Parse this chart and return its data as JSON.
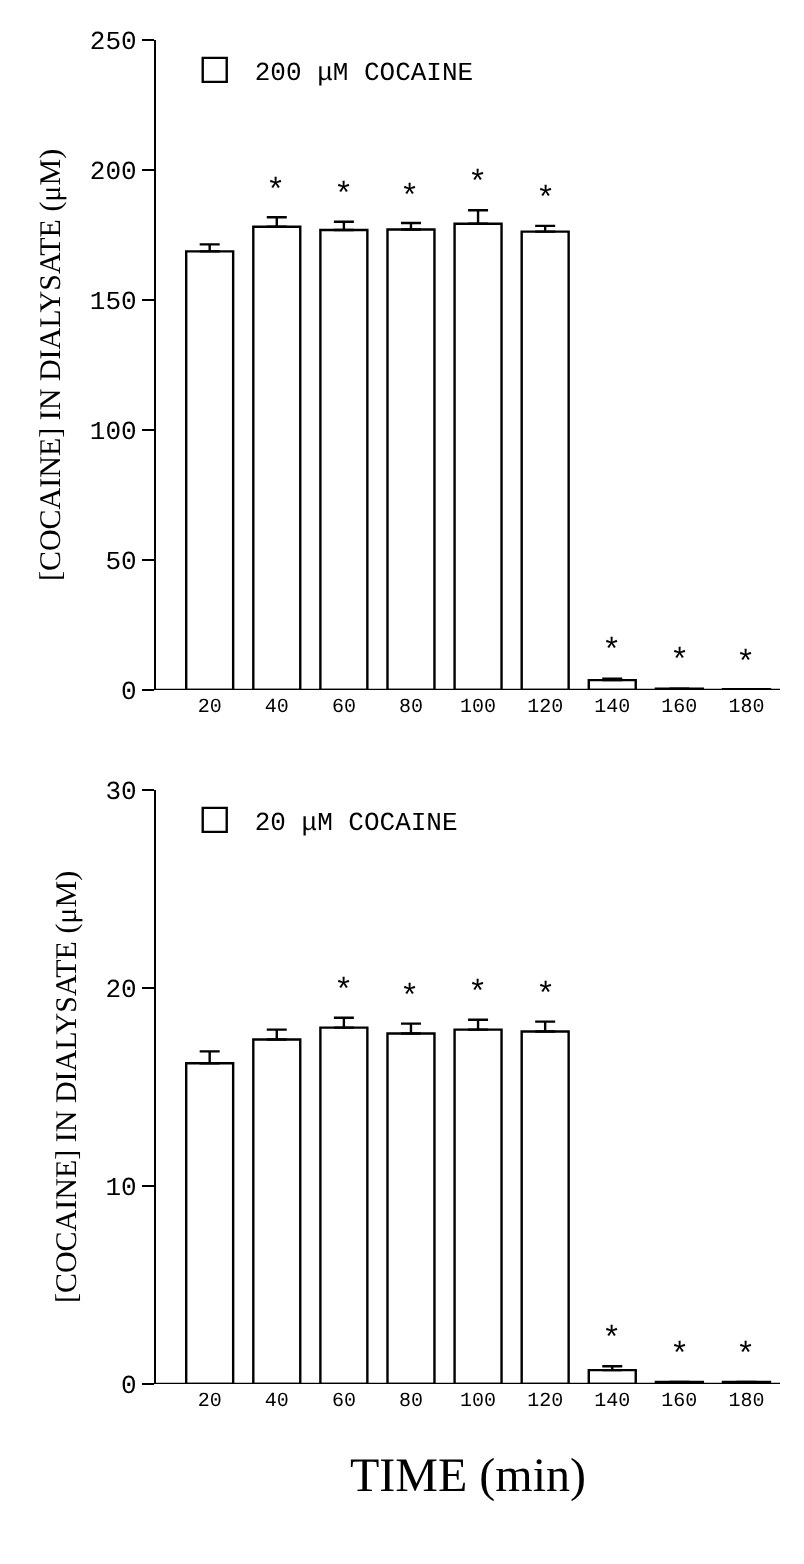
{
  "chart_data": [
    {
      "type": "bar",
      "ylabel": "[COCAINE] IN DIALYSATE (μM)",
      "categories": [
        "20",
        "40",
        "60",
        "80",
        "100",
        "120",
        "140",
        "160",
        "180"
      ],
      "series": [
        {
          "name": "200 μM COCAINE",
          "color": "#ffffff",
          "values": [
            168.7,
            178.2,
            176.9,
            177.1,
            179.3,
            176.3,
            3.8,
            0.5,
            0.3
          ],
          "errors": [
            [
              168.7,
              171.4
            ],
            [
              178.2,
              181.8
            ],
            [
              176.9,
              180.1
            ],
            [
              177.1,
              179.6
            ],
            [
              179.3,
              184.5
            ],
            [
              176.3,
              178.5
            ],
            [
              3.8,
              4.3
            ],
            null,
            null
          ],
          "value_labels": [
            null,
            "*",
            "*",
            "*",
            "*",
            "*",
            "*",
            "*",
            "*"
          ]
        }
      ],
      "ylim": [
        0,
        250
      ],
      "yticks": [
        0,
        50,
        100,
        150,
        200,
        250
      ],
      "grid": false,
      "legend": "top left"
    },
    {
      "type": "bar",
      "ylabel": "[COCAINE] IN DIALYSATE (μM)",
      "xlabel": "TIME (min)",
      "categories": [
        "20",
        "40",
        "60",
        "80",
        "100",
        "120",
        "140",
        "160",
        "180"
      ],
      "series": [
        {
          "name": "20 μM COCAINE",
          "color": "#ffffff",
          "values": [
            16.2,
            17.4,
            18.0,
            17.7,
            17.9,
            17.8,
            0.7,
            0.1,
            0.1
          ],
          "errors": [
            [
              16.2,
              16.8
            ],
            [
              17.4,
              17.9
            ],
            [
              18.0,
              18.5
            ],
            [
              17.7,
              18.2
            ],
            [
              17.9,
              18.4
            ],
            [
              17.8,
              18.3
            ],
            [
              0.7,
              0.9
            ],
            null,
            null
          ],
          "value_labels": [
            null,
            null,
            "*",
            "*",
            "*",
            "*",
            "*",
            "*",
            "*"
          ]
        }
      ],
      "ylim": [
        0,
        30
      ],
      "yticks": [
        0,
        10,
        20,
        30
      ],
      "grid": false,
      "legend": "top left"
    }
  ]
}
